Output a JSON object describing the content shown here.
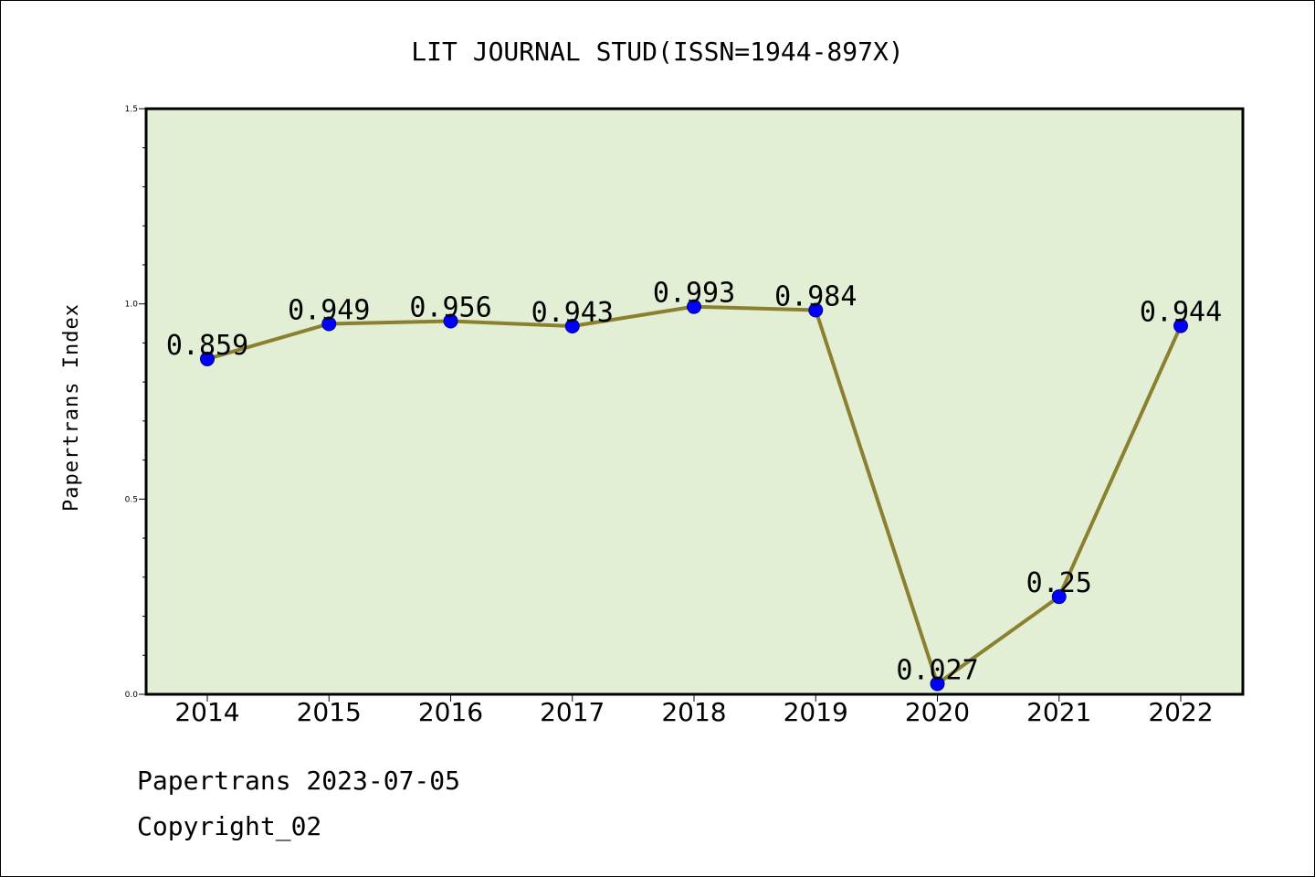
{
  "chart_data": {
    "type": "line",
    "title": "LIT JOURNAL STUD(ISSN=1944-897X)",
    "ylabel": "Papertrans Index",
    "xlabel": "",
    "categories": [
      "2014",
      "2015",
      "2016",
      "2017",
      "2018",
      "2019",
      "2020",
      "2021",
      "2022"
    ],
    "values": [
      0.859,
      0.949,
      0.956,
      0.943,
      0.993,
      0.984,
      0.027,
      0.25,
      0.944
    ],
    "data_labels": [
      "0.859",
      "0.949",
      "0.956",
      "0.943",
      "0.993",
      "0.984",
      "0.027",
      "0.25",
      "0.944"
    ],
    "ylim": [
      0,
      1.5
    ],
    "yticks": [
      "0.0",
      "0.5",
      "1.0",
      "1.5"
    ],
    "grid": false,
    "colors": {
      "line": "#8b8030",
      "marker": "#0000ff",
      "plot_bg": "#e2efd4"
    }
  },
  "footer": {
    "line1": "Papertrans 2023-07-05",
    "line2": "Copyright_02"
  }
}
